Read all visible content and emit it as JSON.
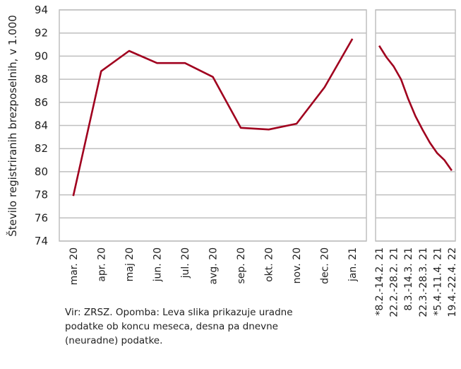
{
  "chart_data": [
    {
      "type": "line",
      "ylabel": "Število registriranih brezposelnih, v 1.000",
      "ylim": [
        74,
        94
      ],
      "yticks": [
        74,
        76,
        78,
        80,
        82,
        84,
        86,
        88,
        90,
        92,
        94
      ],
      "grid": true,
      "color": "#a0001e",
      "categories": [
        "mar. 20",
        "apr. 20",
        "maj 20",
        "jun. 20",
        "jul. 20",
        "avg. 20",
        "sep. 20",
        "okt. 20",
        "nov. 20",
        "dec. 20",
        "jan. 21"
      ],
      "values": [
        77.9,
        88.7,
        90.45,
        89.4,
        89.4,
        88.2,
        83.8,
        83.65,
        84.15,
        87.3,
        91.5
      ]
    },
    {
      "type": "line",
      "ylim": [
        74,
        94
      ],
      "grid": true,
      "color": "#a0001e",
      "categories": [
        "*8.2.-14.2. 21",
        "",
        "22.2.-28.2. 21",
        "",
        "8.3.-14.3. 21",
        "",
        "22.3.-28.3. 21",
        "",
        "*5.4.-11.4. 21",
        "",
        "19.4.-22.4. 22"
      ],
      "values": [
        90.9,
        89.9,
        89.1,
        88.0,
        86.3,
        84.8,
        83.6,
        82.5,
        81.6,
        81.0,
        80.1
      ]
    }
  ],
  "note": "Vir: ZRSZ. Opomba: Leva slika prikazuje uradne podatke ob koncu meseca, desna pa dnevne (neuradne) podatke."
}
